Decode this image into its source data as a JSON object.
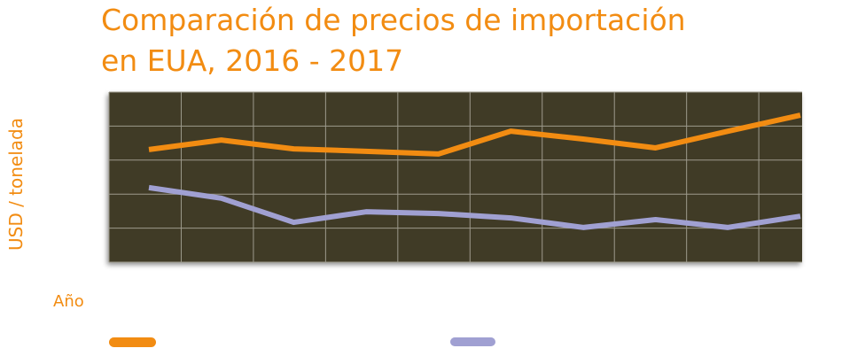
{
  "chart_data": {
    "type": "line",
    "title": "Comparación de precios de importación en EUA, 2016 - 2017",
    "title_lines": [
      "Comparación de precios de importación",
      "en EUA, 2016 - 2017"
    ],
    "xlabel": "Año",
    "ylabel": "USD / tonelada",
    "x": [
      1,
      2,
      3,
      4,
      5,
      6,
      7,
      8,
      9,
      10
    ],
    "ylim": [
      0,
      5
    ],
    "grid": true,
    "legend": "bottom",
    "series": [
      {
        "name": "",
        "color": "#f28c12",
        "values": [
          3.31,
          3.59,
          3.33,
          3.26,
          3.18,
          3.85,
          3.62,
          3.36,
          3.85,
          4.32
        ]
      },
      {
        "name": "",
        "color": "#a0a0d2",
        "values": [
          2.19,
          1.88,
          1.17,
          1.48,
          1.43,
          1.3,
          1.02,
          1.25,
          1.02,
          1.35
        ]
      }
    ]
  },
  "colors": {
    "plot_bg": "#403b26",
    "grid": "#9d9a8c"
  }
}
